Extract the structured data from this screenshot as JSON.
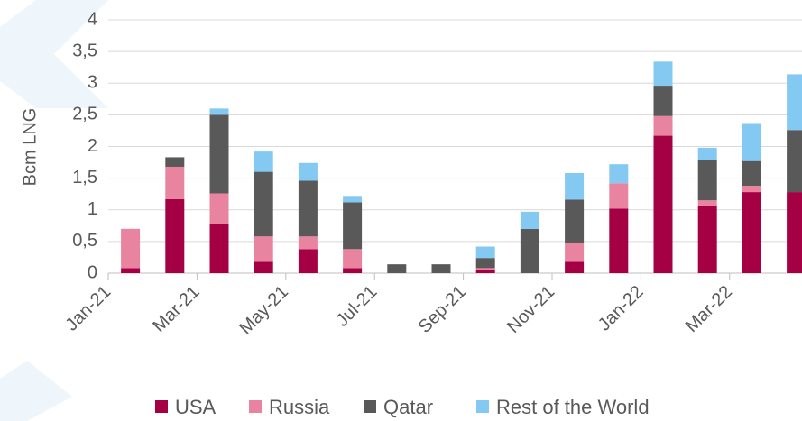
{
  "chart_data": {
    "type": "stacked_bar",
    "y_label": "Bcm LNG",
    "categories": [
      "Jan-21",
      null,
      "Mar-21",
      null,
      "May-21",
      null,
      "Jul-21",
      null,
      "Sep-21",
      null,
      "Nov-21",
      null,
      "Jan-22",
      null,
      "Mar-22",
      null
    ],
    "series": [
      {
        "name": "USA",
        "color": "#a50044",
        "values": [
          0.08,
          1.17,
          0.77,
          0.18,
          0.38,
          0.08,
          0,
          0,
          0.05,
          0,
          0.18,
          1.02,
          2.17,
          1.06,
          1.28,
          1.28
        ]
      },
      {
        "name": "Russia",
        "color": "#e8849f",
        "values": [
          0.62,
          0.51,
          0.49,
          0.4,
          0.2,
          0.3,
          0,
          0,
          0.03,
          0,
          0.29,
          0.4,
          0.31,
          0.09,
          0.1,
          0
        ]
      },
      {
        "name": "Qatar",
        "color": "#595959",
        "values": [
          0,
          0.15,
          1.24,
          1.02,
          0.88,
          0.74,
          0.14,
          0.14,
          0.16,
          0.7,
          0.69,
          0,
          0.48,
          0.64,
          0.39,
          0.98
        ]
      },
      {
        "name": "Rest of the World",
        "color": "#84c9f2",
        "values": [
          0,
          0,
          0.1,
          0.32,
          0.28,
          0.1,
          0,
          0,
          0.18,
          0.27,
          0.42,
          0.3,
          0.38,
          0.19,
          0.6,
          0.88
        ]
      }
    ],
    "ylim": [
      0,
      4
    ],
    "yticks": [
      0,
      {
        "value": 0.5,
        "label": "0,5"
      },
      1,
      {
        "value": 1.5,
        "label": "1,5"
      },
      2,
      {
        "value": 2.5,
        "label": "2,5"
      },
      3,
      {
        "value": 3.5,
        "label": "3,5"
      },
      4
    ],
    "grid": true,
    "legend": "bottom"
  }
}
